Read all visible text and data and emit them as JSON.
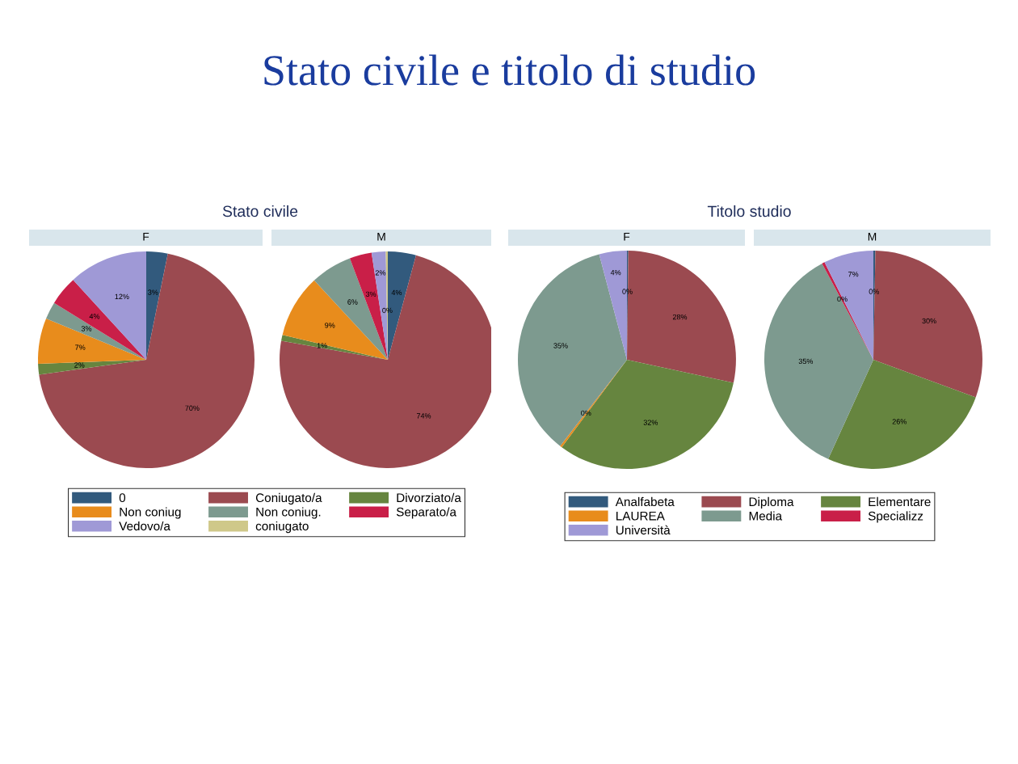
{
  "chart_data": [
    {
      "type": "pie",
      "title": "F",
      "subtitle": "Stato civile",
      "annotations": [
        "Stato civile e titolo di studio"
      ],
      "legend": "bottom",
      "categories": [
        "0",
        "Coniugato/a",
        "Divorziato/a",
        "Non coniug",
        "Non coniug.",
        "Separato/a",
        "Vedovo/a",
        "coniugato"
      ],
      "colors": [
        "#325a7d",
        "#9b4a50",
        "#66853f",
        "#e88c1c",
        "#7d9a8f",
        "#c91f48",
        "#9f99d6",
        "#cfc889"
      ],
      "values": [
        3.2,
        69.6,
        1.6,
        6.8,
        2.6,
        4.4,
        11.8,
        null
      ],
      "value_labels": [
        "3%",
        "70%",
        "2%",
        "7%",
        "3%",
        "4%",
        "12%",
        null
      ]
    },
    {
      "type": "pie",
      "title": "M",
      "colors": [
        "#325a7d",
        "#9b4a50",
        "#66853f",
        "#e88c1c",
        "#7d9a8f",
        "#c91f48",
        "#9f99d6",
        "#cfc889"
      ],
      "values": [
        4.2,
        73.6,
        0.9,
        9.4,
        6.2,
        3.3,
        2.1,
        0.3
      ],
      "value_labels": [
        "4%",
        "74%",
        "1%",
        "9%",
        "6%",
        "3%",
        "2%",
        "0%"
      ]
    },
    {
      "type": "pie",
      "title": "F",
      "subtitle": "Titolo studio",
      "legend": "bottom",
      "categories": [
        "Analfabeta",
        "Diploma",
        "Elementare",
        "LAUREA",
        "Media",
        "Specializz",
        "Università"
      ],
      "colors": [
        "#325a7d",
        "#9b4a50",
        "#66853f",
        "#e88c1c",
        "#7d9a8f",
        "#c91f48",
        "#9f99d6"
      ],
      "values": [
        0.2,
        28.2,
        31.8,
        0.3,
        35.4,
        null,
        4.1
      ],
      "value_labels": [
        "0%",
        "28%",
        "32%",
        "0%",
        "35%",
        null,
        "4%"
      ]
    },
    {
      "type": "pie",
      "title": "M",
      "colors": [
        "#325a7d",
        "#9b4a50",
        "#66853f",
        "#e88c1c",
        "#7d9a8f",
        "#c91f48",
        "#9f99d6"
      ],
      "values": [
        0.3,
        30.3,
        26.2,
        null,
        35.4,
        0.4,
        7.4
      ],
      "value_labels": [
        "0%",
        "30%",
        "26%",
        null,
        "35%",
        "0%",
        "7%"
      ]
    }
  ]
}
